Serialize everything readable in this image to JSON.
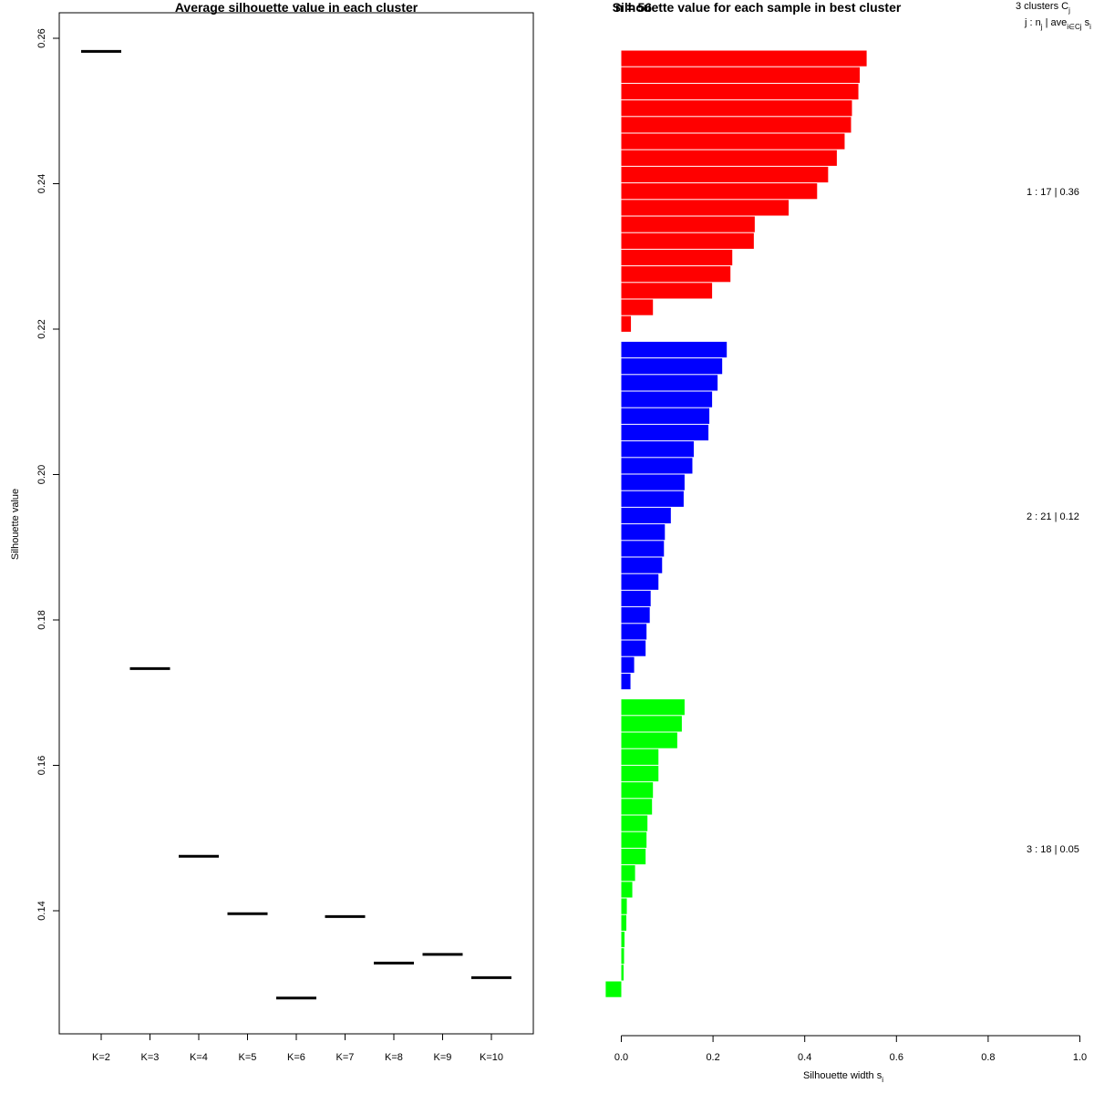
{
  "chart_data": [
    {
      "type": "line",
      "title": "Average silhouette value in each cluster",
      "xlabel": "",
      "ylabel": "Silhouette value",
      "categories": [
        "K=2",
        "K=3",
        "K=4",
        "K=5",
        "K=6",
        "K=7",
        "K=8",
        "K=9",
        "K=10"
      ],
      "values": [
        0.2582,
        0.1733,
        0.1475,
        0.1396,
        0.128,
        0.1392,
        0.1328,
        0.134,
        0.1308
      ],
      "ylim": [
        0.125,
        0.2625
      ],
      "yticks": [
        "0.14",
        "0.16",
        "0.18",
        "0.20",
        "0.22",
        "0.24",
        "0.26"
      ],
      "grid": false
    },
    {
      "type": "bar",
      "orientation": "horizontal",
      "title": "Silhouette value for each sample in best cluster",
      "subtitle": "n = 56",
      "xlabel": "Silhouette width s",
      "xlabel_sub": "i",
      "xlim": [
        0,
        1
      ],
      "xticks": [
        "0.0",
        "0.2",
        "0.4",
        "0.6",
        "0.8",
        "1.0"
      ],
      "header_line1": "3  clusters  C",
      "header_line1_sub": "j",
      "header_line2": "j :  n",
      "header_line2_sub": "j",
      "header_line2_mid": " | ave",
      "header_line2_mid_sub": "i∈Cj",
      "header_line2_end": "  s",
      "header_line2_end_sub": "i",
      "colors": {
        "cluster1": "#ff0000",
        "cluster2": "#0000ff",
        "cluster3": "#00ff00"
      },
      "series": [
        {
          "label": "1 :  17  |  0.36",
          "color": "#ff0000",
          "values": [
            0.535,
            0.52,
            0.517,
            0.503,
            0.501,
            0.487,
            0.47,
            0.451,
            0.427,
            0.365,
            0.291,
            0.289,
            0.242,
            0.238,
            0.198,
            0.069,
            0.021
          ]
        },
        {
          "label": "2 :  21  |  0.12",
          "color": "#0000ff",
          "values": [
            0.23,
            0.22,
            0.21,
            0.198,
            0.192,
            0.19,
            0.158,
            0.155,
            0.138,
            0.136,
            0.108,
            0.095,
            0.093,
            0.089,
            0.081,
            0.064,
            0.062,
            0.055,
            0.053,
            0.028,
            0.02
          ]
        },
        {
          "label": "3 :  18  |  0.05",
          "color": "#00ff00",
          "values": [
            0.138,
            0.132,
            0.122,
            0.081,
            0.081,
            0.069,
            0.067,
            0.057,
            0.055,
            0.053,
            0.03,
            0.024,
            0.012,
            0.011,
            0.007,
            0.006,
            0.005,
            -0.034
          ]
        }
      ]
    }
  ]
}
